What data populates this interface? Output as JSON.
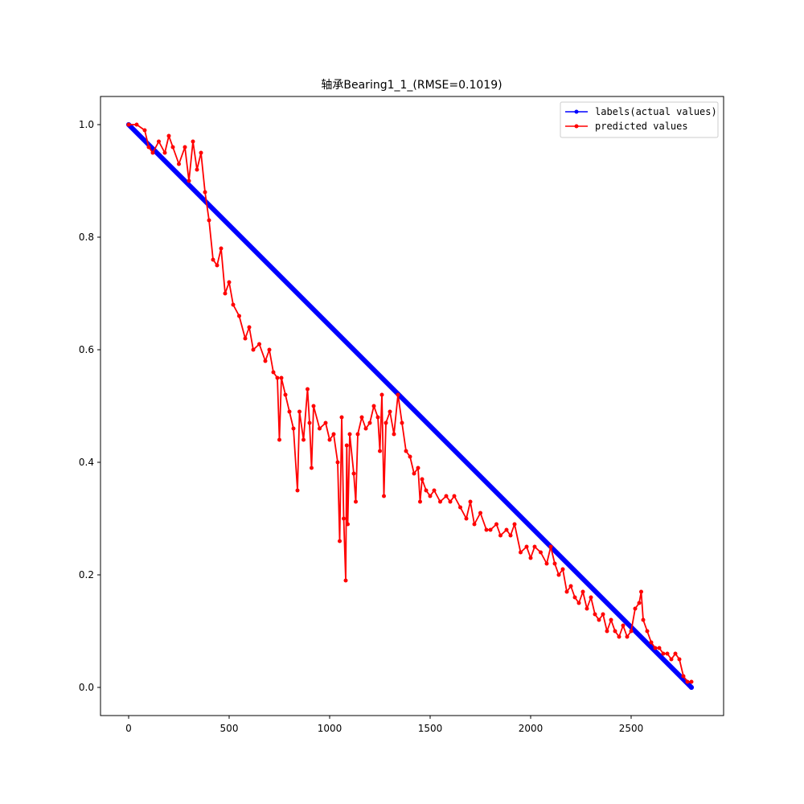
{
  "chart_data": {
    "type": "line",
    "title": "轴承Bearing1_1_(RMSE=0.1019)",
    "xlabel": "",
    "ylabel": "",
    "xlim": [
      -140,
      2960
    ],
    "ylim": [
      -0.05,
      1.05
    ],
    "x_ticks": [
      0,
      500,
      1000,
      1500,
      2000,
      2500
    ],
    "y_ticks": [
      0.0,
      0.2,
      0.4,
      0.6,
      0.8,
      1.0
    ],
    "x_tick_labels": [
      "0",
      "500",
      "1000",
      "1500",
      "2000",
      "2500"
    ],
    "y_tick_labels": [
      "0.0",
      "0.2",
      "0.4",
      "0.6",
      "0.8",
      "1.0"
    ],
    "grid": false,
    "legend_position": "top-right",
    "series": [
      {
        "name": "labels(actual values)",
        "color": "#0000ff",
        "marker": "circle",
        "x": [
          0,
          2800
        ],
        "y": [
          1.0,
          0.0
        ],
        "n_points": 2803
      },
      {
        "name": "predicted values",
        "color": "#ff0000",
        "marker": "circle",
        "x": [
          0,
          40,
          80,
          100,
          120,
          150,
          180,
          200,
          220,
          250,
          280,
          300,
          320,
          340,
          360,
          380,
          400,
          420,
          440,
          460,
          480,
          500,
          520,
          550,
          580,
          600,
          620,
          650,
          680,
          700,
          720,
          740,
          750,
          760,
          780,
          800,
          820,
          840,
          850,
          870,
          890,
          900,
          910,
          920,
          950,
          980,
          1000,
          1020,
          1040,
          1050,
          1060,
          1070,
          1080,
          1085,
          1090,
          1100,
          1120,
          1130,
          1140,
          1160,
          1180,
          1200,
          1220,
          1240,
          1250,
          1260,
          1270,
          1280,
          1300,
          1320,
          1340,
          1360,
          1380,
          1400,
          1420,
          1440,
          1450,
          1460,
          1480,
          1500,
          1520,
          1550,
          1580,
          1600,
          1620,
          1650,
          1680,
          1700,
          1720,
          1750,
          1780,
          1800,
          1830,
          1850,
          1880,
          1900,
          1920,
          1950,
          1980,
          2000,
          2020,
          2050,
          2080,
          2100,
          2120,
          2140,
          2160,
          2180,
          2200,
          2220,
          2240,
          2260,
          2280,
          2300,
          2320,
          2340,
          2360,
          2380,
          2400,
          2420,
          2440,
          2460,
          2480,
          2500,
          2520,
          2540,
          2550,
          2560,
          2580,
          2600,
          2620,
          2640,
          2660,
          2680,
          2700,
          2720,
          2740,
          2760,
          2780,
          2800
        ],
        "y": [
          1.0,
          1.0,
          0.99,
          0.96,
          0.95,
          0.97,
          0.95,
          0.98,
          0.96,
          0.93,
          0.96,
          0.9,
          0.97,
          0.92,
          0.95,
          0.88,
          0.83,
          0.76,
          0.75,
          0.78,
          0.7,
          0.72,
          0.68,
          0.66,
          0.62,
          0.64,
          0.6,
          0.61,
          0.58,
          0.6,
          0.56,
          0.55,
          0.44,
          0.55,
          0.52,
          0.49,
          0.46,
          0.35,
          0.49,
          0.44,
          0.53,
          0.47,
          0.39,
          0.5,
          0.46,
          0.47,
          0.44,
          0.45,
          0.4,
          0.26,
          0.48,
          0.3,
          0.19,
          0.43,
          0.29,
          0.45,
          0.38,
          0.33,
          0.45,
          0.48,
          0.46,
          0.47,
          0.5,
          0.48,
          0.42,
          0.52,
          0.34,
          0.47,
          0.49,
          0.45,
          0.52,
          0.47,
          0.42,
          0.41,
          0.38,
          0.39,
          0.33,
          0.37,
          0.35,
          0.34,
          0.35,
          0.33,
          0.34,
          0.33,
          0.34,
          0.32,
          0.3,
          0.33,
          0.29,
          0.31,
          0.28,
          0.28,
          0.29,
          0.27,
          0.28,
          0.27,
          0.29,
          0.24,
          0.25,
          0.23,
          0.25,
          0.24,
          0.22,
          0.25,
          0.22,
          0.2,
          0.21,
          0.17,
          0.18,
          0.16,
          0.15,
          0.17,
          0.14,
          0.16,
          0.13,
          0.12,
          0.13,
          0.1,
          0.12,
          0.1,
          0.09,
          0.11,
          0.09,
          0.1,
          0.14,
          0.15,
          0.17,
          0.12,
          0.1,
          0.08,
          0.07,
          0.07,
          0.06,
          0.06,
          0.05,
          0.06,
          0.05,
          0.02,
          0.01,
          0.01
        ]
      }
    ]
  }
}
